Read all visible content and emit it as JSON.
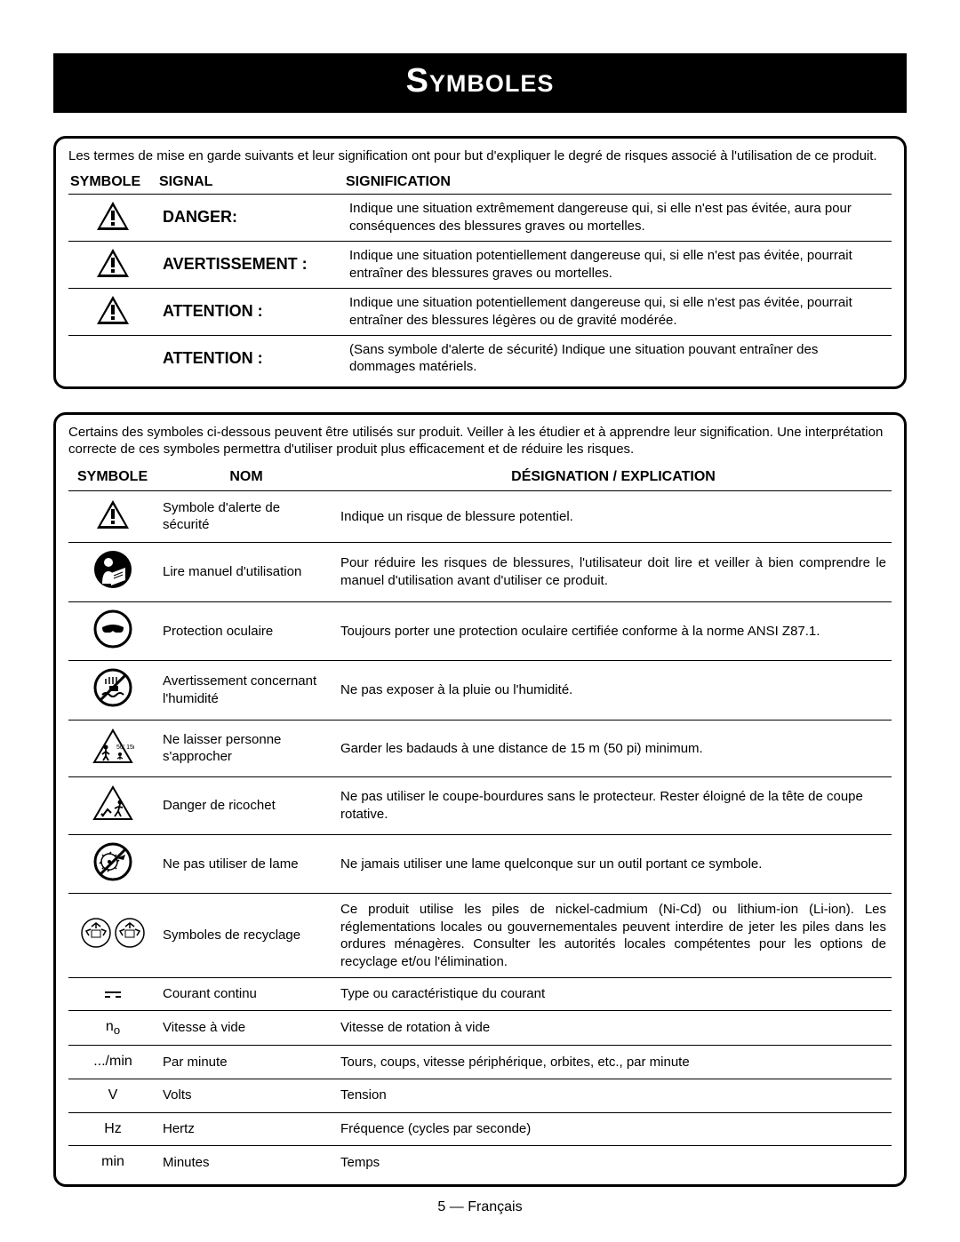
{
  "title": "Symboles",
  "box1": {
    "intro": "Les termes de mise en garde suivants et leur signification ont pour but d'expliquer le degré de risques associé à l'utilisation de ce produit.",
    "headers": {
      "symbole": "SYMBOLE",
      "signal": "SIGNAL",
      "signification": "SIGNIFICATION"
    },
    "rows": [
      {
        "has_icon": true,
        "signal": "DANGER:",
        "text": "Indique une situation extrêmement dangereuse qui, si elle n'est pas évitée, aura pour conséquences des blessures graves ou mortelles."
      },
      {
        "has_icon": true,
        "signal": "AVERTISSEMENT :",
        "text": "Indique une situation potentiellement dangereuse qui, si elle n'est pas évitée, pourrait entraîner des blessures graves ou mortelles."
      },
      {
        "has_icon": true,
        "signal": "ATTENTION :",
        "text": "Indique une situation potentiellement dangereuse qui, si elle n'est pas évitée, pourrait entraîner des blessures légères ou de gravité modérée."
      },
      {
        "has_icon": false,
        "signal": "ATTENTION :",
        "text": "(Sans symbole d'alerte de sécurité) Indique une situation pouvant entraîner des dommages matériels."
      }
    ]
  },
  "box2": {
    "intro": "Certains des symboles ci-dessous peuvent être utilisés sur produit. Veiller à les étudier et à apprendre leur signification. Une interprétation correcte de ces symboles permettra d'utiliser produit plus efficacement et de réduire les risques.",
    "headers": {
      "symbole": "SYMBOLE",
      "nom": "NOM",
      "designation": "DÉSIGNATION / EXPLICATION"
    },
    "rows": [
      {
        "icon": "warn",
        "nom": "Symbole d'alerte de sécurité",
        "des": "Indique un risque de blessure potentiel."
      },
      {
        "icon": "read",
        "nom": "Lire manuel d'utilisation",
        "des": "Pour réduire les risques de blessures, l'utilisateur doit lire et veiller à bien comprendre le manuel d'utilisation avant d'utiliser ce produit.",
        "justify": true
      },
      {
        "icon": "eye",
        "nom": "Protection oculaire",
        "des": "Toujours porter une protection oculaire certifiée conforme à la norme ANSI Z87.1."
      },
      {
        "icon": "wet",
        "nom": "Avertissement concernant l'humidité",
        "des": "Ne pas exposer à la pluie ou l'humidité."
      },
      {
        "icon": "keepaway",
        "nom": "Ne laisser personne s'approcher",
        "des": "Garder les badauds à une distance de 15 m (50 pi) minimum."
      },
      {
        "icon": "ricochet",
        "nom": "Danger de ricochet",
        "des": "Ne pas utiliser le coupe-bourdures sans le protecteur. Rester éloigné de la tête de coupe rotative."
      },
      {
        "icon": "noblade",
        "nom": "Ne pas utiliser de lame",
        "des": "Ne jamais utiliser une lame quelconque sur un outil portant ce symbole."
      },
      {
        "icon": "recycle",
        "nom": "Symboles de recyclage",
        "des": "Ce produit utilise les piles de nickel-cadmium (Ni-Cd) ou lithium-ion (Li-ion). Les réglementations locales ou gouvernementales peuvent interdire de jeter les piles dans les ordures ménagères. Consulter les autorités locales compétentes pour les options de recyclage et/ou l'élimination.",
        "justify": true
      },
      {
        "icon": "dc",
        "nom": "Courant continu",
        "des": "Type ou caractéristique du courant"
      },
      {
        "icon": "no",
        "nom": "Vitesse à vide",
        "des": "Vitesse de rotation à vide"
      },
      {
        "icon": "permin",
        "nom": "Par minute",
        "des": "Tours, coups, vitesse périphérique, orbites, etc., par minute"
      },
      {
        "icon": "V",
        "nom": "Volts",
        "des": "Tension"
      },
      {
        "icon": "Hz",
        "nom": "Hertz",
        "des": "Fréquence (cycles par seconde)"
      },
      {
        "icon": "min",
        "nom": "Minutes",
        "des": "Temps"
      }
    ]
  },
  "footer": "5 — Français"
}
